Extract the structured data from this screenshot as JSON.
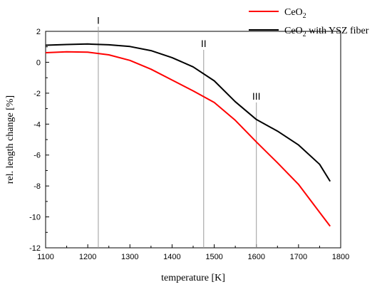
{
  "chart_data": {
    "type": "line",
    "xlabel": "temperature [K]",
    "ylabel": "rel. length change [%]",
    "xlim": [
      1100,
      1800
    ],
    "ylim": [
      -12,
      2
    ],
    "x_ticks": [
      1100,
      1200,
      1300,
      1400,
      1500,
      1600,
      1700,
      1800
    ],
    "y_ticks": [
      2,
      0,
      -2,
      -4,
      -6,
      -8,
      -10,
      -12
    ],
    "grid": false,
    "legend_position": "top-right",
    "series": [
      {
        "name": "CeO2",
        "legend_base": "CeO",
        "legend_sub": "2",
        "legend_suffix": "",
        "color": "#ff0000",
        "x": [
          1100,
          1150,
          1200,
          1250,
          1300,
          1350,
          1400,
          1450,
          1500,
          1550,
          1600,
          1650,
          1700,
          1750,
          1775
        ],
        "y": [
          0.62,
          0.68,
          0.65,
          0.48,
          0.12,
          -0.45,
          -1.15,
          -1.85,
          -2.6,
          -3.75,
          -5.15,
          -6.5,
          -7.9,
          -9.7,
          -10.6
        ]
      },
      {
        "name": "CeO2 with YSZ fiber",
        "legend_base": "CeO",
        "legend_sub": "2",
        "legend_suffix": " with YSZ fiber",
        "color": "#000000",
        "x": [
          1100,
          1150,
          1200,
          1250,
          1300,
          1350,
          1400,
          1450,
          1500,
          1550,
          1600,
          1650,
          1700,
          1750,
          1775
        ],
        "y": [
          1.1,
          1.15,
          1.18,
          1.13,
          1.02,
          0.75,
          0.3,
          -0.3,
          -1.2,
          -2.55,
          -3.7,
          -4.45,
          -5.35,
          -6.6,
          -7.7
        ]
      }
    ],
    "markers": [
      {
        "label": "I",
        "x": 1225,
        "y_top": 2.3
      },
      {
        "label": "II",
        "x": 1475,
        "y_top": 0.8
      },
      {
        "label": "III",
        "x": 1600,
        "y_top": -2.6
      }
    ]
  }
}
